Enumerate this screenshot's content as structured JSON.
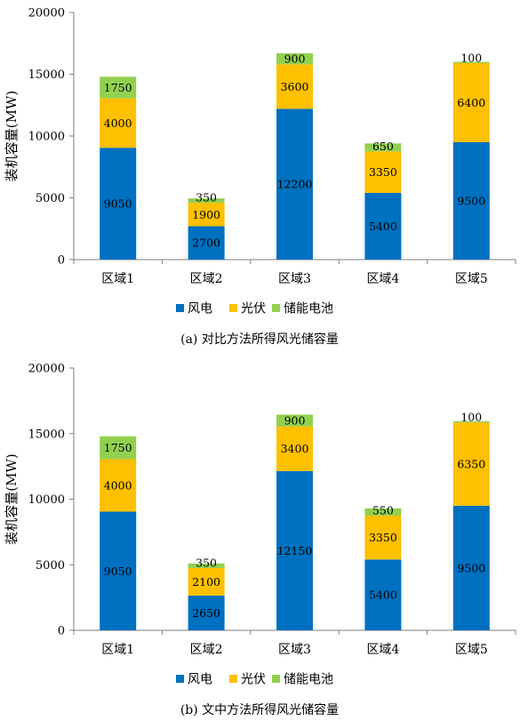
{
  "legend_labels": [
    "风电",
    "光伏",
    "储能电池"
  ],
  "colors": {
    "wind": "#0070C0",
    "pv": "#FFC000",
    "storage": "#92D050",
    "axis": "#7f7f7f"
  },
  "chart_data": [
    {
      "type": "bar",
      "stacked": true,
      "caption": "(a)  对比方法所得风光储容量",
      "ylabel": "装机容量(MW)",
      "ylim": [
        0,
        20000
      ],
      "yticks": [
        0,
        5000,
        10000,
        15000,
        20000
      ],
      "legend_position": "bottom",
      "categories": [
        "区域1",
        "区域2",
        "区域3",
        "区域4",
        "区域5"
      ],
      "series": [
        {
          "name": "风电",
          "values": [
            9050,
            2700,
            12200,
            5400,
            9500
          ]
        },
        {
          "name": "光伏",
          "values": [
            4000,
            1900,
            3600,
            3350,
            6400
          ]
        },
        {
          "name": "储能电池",
          "values": [
            1750,
            350,
            900,
            650,
            100
          ]
        }
      ]
    },
    {
      "type": "bar",
      "stacked": true,
      "caption": "(b)  文中方法所得风光储容量",
      "ylabel": "装机容量(MW)",
      "ylim": [
        0,
        20000
      ],
      "yticks": [
        0,
        5000,
        10000,
        15000,
        20000
      ],
      "legend_position": "bottom",
      "categories": [
        "区域1",
        "区域2",
        "区域3",
        "区域4",
        "区域5"
      ],
      "series": [
        {
          "name": "风电",
          "values": [
            9050,
            2650,
            12150,
            5400,
            9500
          ]
        },
        {
          "name": "光伏",
          "values": [
            4000,
            2100,
            3400,
            3350,
            6350
          ]
        },
        {
          "name": "储能电池",
          "values": [
            1750,
            350,
            900,
            550,
            100
          ]
        }
      ]
    }
  ]
}
